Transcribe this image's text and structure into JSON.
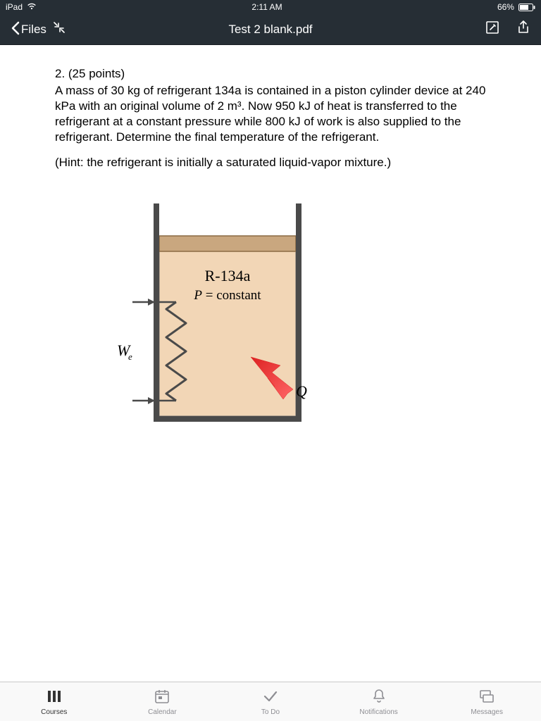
{
  "status": {
    "device": "iPad",
    "time": "2:11 AM",
    "battery_pct": "66%"
  },
  "nav": {
    "back_label": "Files",
    "title": "Test 2 blank.pdf"
  },
  "problem": {
    "number_points": "2. (25 points)",
    "body": "A mass of 30 kg of refrigerant 134a is contained in a piston cylinder device at 240 kPa with an original volume of 2 m³. Now 950 kJ of heat is transferred to the refrigerant at a constant pressure while 800 kJ of work is also supplied to the refrigerant. Determine the final temperature of the refrigerant.",
    "hint": "(Hint: the refrigerant is initially a saturated liquid-vapor mixture.)"
  },
  "diagram": {
    "label_substance": "R-134a",
    "label_condition": "P = constant",
    "label_work": "W",
    "label_work_sub": "e",
    "label_heat": "Q",
    "colors": {
      "wall": "#4a4a4a",
      "piston": "#c9a77f",
      "piston_edge": "#8a6a44",
      "fluid": "#f2d6b6",
      "fluid_edge": "#6b6b6b",
      "arrow_red": "#d22",
      "arrow_red_light": "#f66",
      "text": "#000"
    }
  },
  "tabs": {
    "courses": "Courses",
    "calendar": "Calendar",
    "todo": "To Do",
    "notifications": "Notifications",
    "messages": "Messages"
  }
}
